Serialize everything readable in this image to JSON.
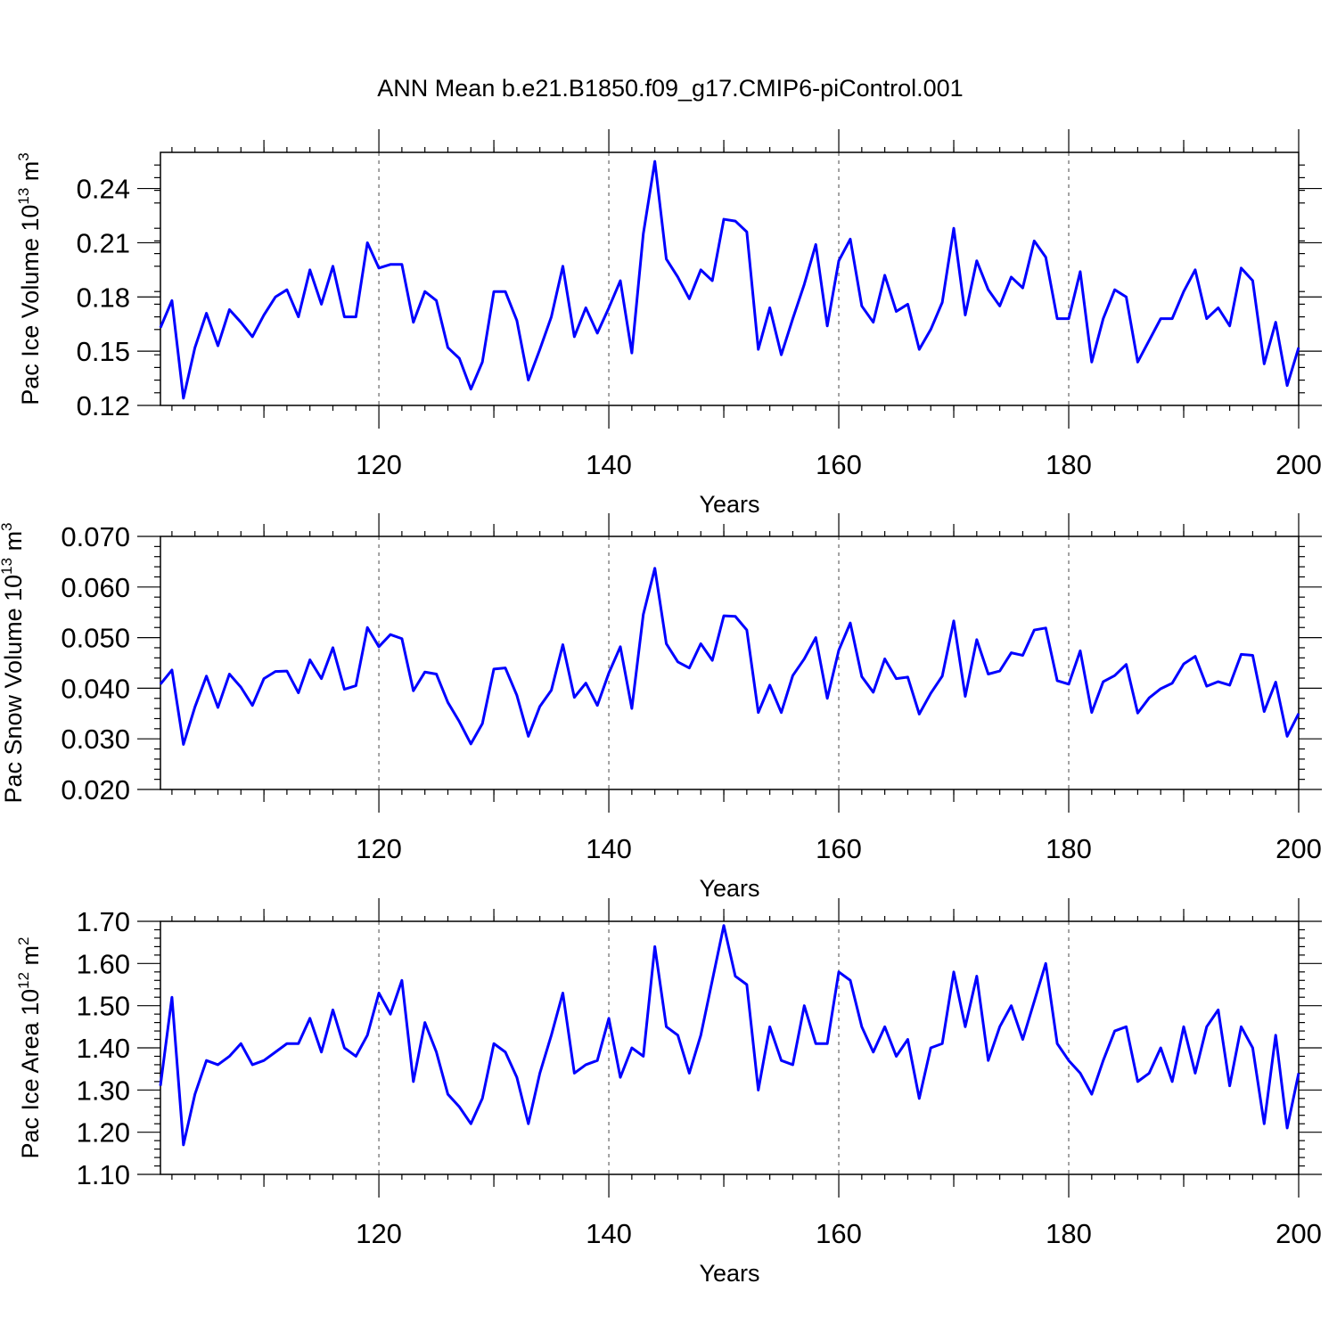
{
  "figure": {
    "title": "ANN Mean b.e21.B1850.f09_g17.CMIP6-piControl.001"
  },
  "chart_data": [
    {
      "type": "line",
      "id": "ice-volume",
      "ylabel": "Pac Ice Volume 10",
      "ylabel_sup": "13",
      "ylabel_unit": " m",
      "ylabel_unit_sup": "3",
      "xlabel": "Years",
      "xlim": [
        101,
        200
      ],
      "ylim": [
        0.12,
        0.26
      ],
      "yticks": [
        "0.12",
        "0.15",
        "0.18",
        "0.21",
        "0.24"
      ],
      "xticks": [
        "120",
        "140",
        "160",
        "180",
        "200"
      ],
      "grid": "x-dashed",
      "x_start": 101,
      "series": [
        {
          "color": "#0000ff",
          "values": [
            0.163,
            0.178,
            0.124,
            0.152,
            0.171,
            0.153,
            0.173,
            0.166,
            0.158,
            0.17,
            0.18,
            0.184,
            0.169,
            0.195,
            0.176,
            0.197,
            0.169,
            0.169,
            0.21,
            0.196,
            0.198,
            0.198,
            0.166,
            0.183,
            0.178,
            0.152,
            0.146,
            0.129,
            0.144,
            0.183,
            0.183,
            0.167,
            0.134,
            0.151,
            0.169,
            0.197,
            0.158,
            0.174,
            0.16,
            0.174,
            0.189,
            0.149,
            0.215,
            0.255,
            0.201,
            0.191,
            0.179,
            0.195,
            0.189,
            0.223,
            0.222,
            0.216,
            0.151,
            0.174,
            0.148,
            0.168,
            0.187,
            0.209,
            0.164,
            0.2,
            0.212,
            0.175,
            0.166,
            0.192,
            0.172,
            0.176,
            0.151,
            0.162,
            0.177,
            0.218,
            0.17,
            0.2,
            0.184,
            0.175,
            0.191,
            0.185,
            0.211,
            0.202,
            0.168,
            0.168,
            0.194,
            0.144,
            0.168,
            0.184,
            0.18,
            0.144,
            0.156,
            0.168,
            0.168,
            0.183,
            0.195,
            0.168,
            0.174,
            0.164,
            0.196,
            0.189,
            0.143,
            0.166,
            0.131,
            0.152
          ]
        }
      ]
    },
    {
      "type": "line",
      "id": "snow-volume",
      "ylabel": "Pac Snow Volume 10",
      "ylabel_sup": "13",
      "ylabel_unit": " m",
      "ylabel_unit_sup": "3",
      "xlabel": "Years",
      "xlim": [
        101,
        200
      ],
      "ylim": [
        0.02,
        0.07
      ],
      "yticks": [
        "0.020",
        "0.030",
        "0.040",
        "0.050",
        "0.060",
        "0.070"
      ],
      "xticks": [
        "120",
        "140",
        "160",
        "180",
        "200"
      ],
      "grid": "x-dashed",
      "x_start": 101,
      "series": [
        {
          "color": "#0000ff",
          "values": [
            0.0408,
            0.0436,
            0.0289,
            0.0363,
            0.0424,
            0.0362,
            0.0428,
            0.0402,
            0.0366,
            0.0419,
            0.0433,
            0.0434,
            0.0391,
            0.0456,
            0.0419,
            0.048,
            0.0398,
            0.0405,
            0.052,
            0.0482,
            0.0506,
            0.0498,
            0.0395,
            0.0432,
            0.0428,
            0.0372,
            0.0334,
            0.029,
            0.033,
            0.0438,
            0.044,
            0.0386,
            0.0305,
            0.0364,
            0.0396,
            0.0486,
            0.0382,
            0.041,
            0.0366,
            0.043,
            0.0482,
            0.036,
            0.0546,
            0.0637,
            0.0488,
            0.0452,
            0.044,
            0.0488,
            0.0455,
            0.0543,
            0.0542,
            0.0515,
            0.0352,
            0.0406,
            0.0352,
            0.0425,
            0.0458,
            0.05,
            0.038,
            0.0475,
            0.0529,
            0.0423,
            0.0392,
            0.0458,
            0.0419,
            0.0422,
            0.0349,
            0.039,
            0.0424,
            0.0533,
            0.0384,
            0.0496,
            0.0428,
            0.0434,
            0.047,
            0.0465,
            0.0515,
            0.0519,
            0.0415,
            0.0408,
            0.0474,
            0.0352,
            0.0413,
            0.0425,
            0.0447,
            0.0351,
            0.0381,
            0.0399,
            0.041,
            0.0448,
            0.0463,
            0.0404,
            0.0413,
            0.0406,
            0.0467,
            0.0465,
            0.0354,
            0.0412,
            0.0305,
            0.035
          ]
        }
      ]
    },
    {
      "type": "line",
      "id": "ice-area",
      "ylabel": "Pac Ice Area 10",
      "ylabel_sup": "12",
      "ylabel_unit": " m",
      "ylabel_unit_sup": "2",
      "xlabel": "Years",
      "xlim": [
        101,
        200
      ],
      "ylim": [
        1.1,
        1.7
      ],
      "yticks": [
        "1.10",
        "1.20",
        "1.30",
        "1.40",
        "1.50",
        "1.60",
        "1.70"
      ],
      "xticks": [
        "120",
        "140",
        "160",
        "180",
        "200"
      ],
      "grid": "x-dashed",
      "x_start": 101,
      "series": [
        {
          "color": "#0000ff",
          "values": [
            1.31,
            1.52,
            1.17,
            1.29,
            1.37,
            1.36,
            1.38,
            1.41,
            1.36,
            1.37,
            1.39,
            1.41,
            1.41,
            1.47,
            1.39,
            1.49,
            1.4,
            1.38,
            1.43,
            1.53,
            1.48,
            1.56,
            1.32,
            1.46,
            1.39,
            1.29,
            1.26,
            1.22,
            1.28,
            1.41,
            1.39,
            1.33,
            1.22,
            1.34,
            1.43,
            1.53,
            1.34,
            1.36,
            1.37,
            1.47,
            1.33,
            1.4,
            1.38,
            1.64,
            1.45,
            1.43,
            1.34,
            1.43,
            1.56,
            1.69,
            1.57,
            1.55,
            1.3,
            1.45,
            1.37,
            1.36,
            1.5,
            1.41,
            1.41,
            1.58,
            1.56,
            1.45,
            1.39,
            1.45,
            1.38,
            1.42,
            1.28,
            1.4,
            1.41,
            1.58,
            1.45,
            1.57,
            1.37,
            1.45,
            1.5,
            1.42,
            1.51,
            1.6,
            1.41,
            1.37,
            1.34,
            1.29,
            1.37,
            1.44,
            1.45,
            1.32,
            1.34,
            1.4,
            1.32,
            1.45,
            1.34,
            1.45,
            1.49,
            1.31,
            1.45,
            1.4,
            1.22,
            1.43,
            1.21,
            1.34
          ]
        }
      ]
    }
  ]
}
